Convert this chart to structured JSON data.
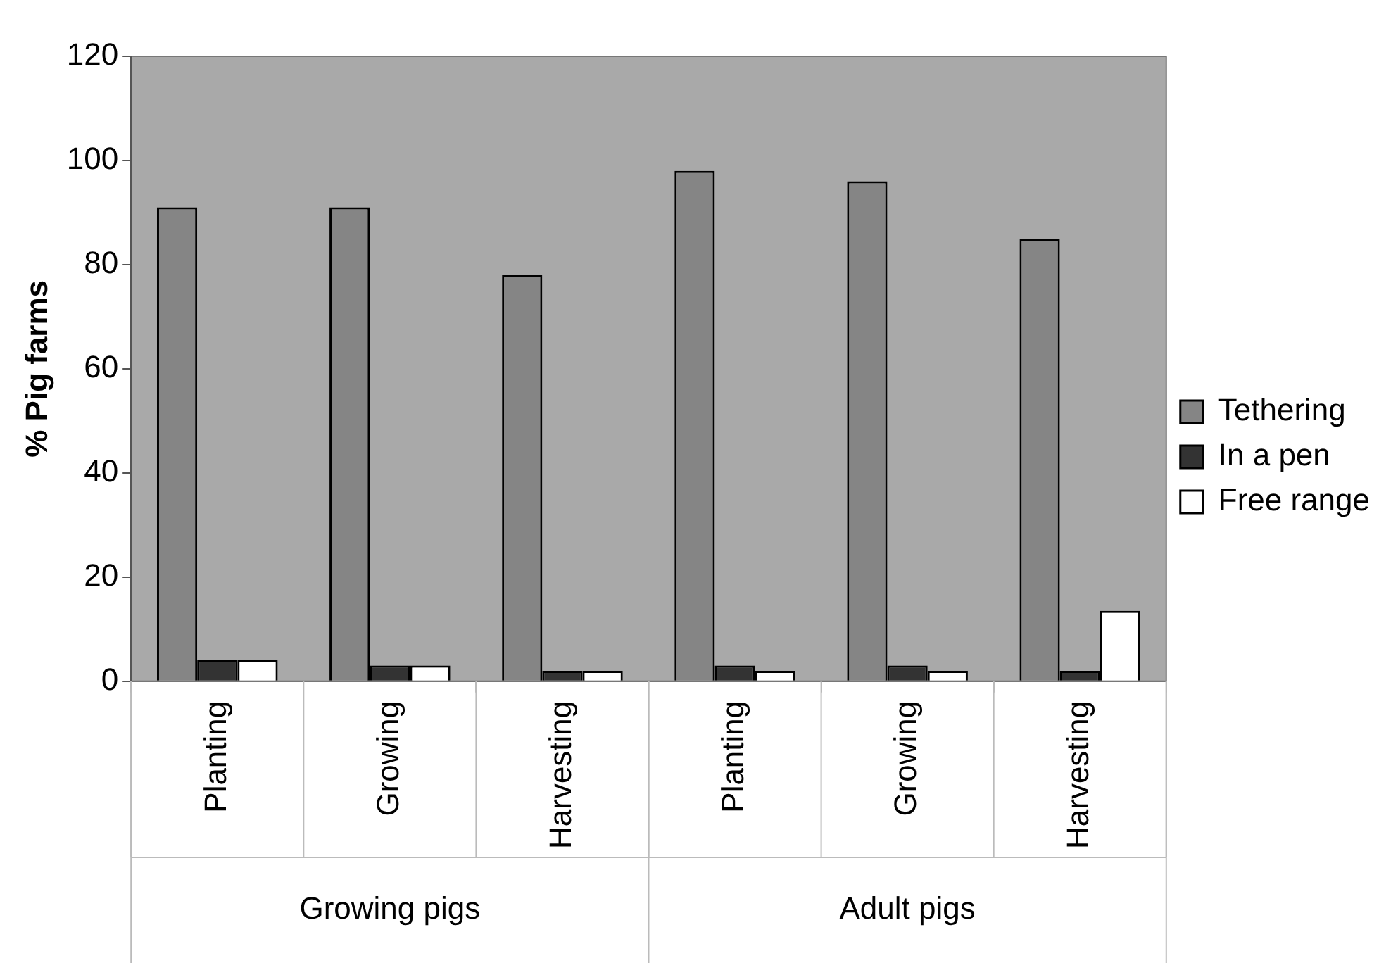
{
  "chart_data": {
    "type": "bar",
    "ylabel": "% Pig farms",
    "categories": [
      "Planting",
      "Growing",
      "Harvesting",
      "Planting",
      "Growing",
      "Harvesting"
    ],
    "series": [
      {
        "name": "Tethering",
        "color": "#858585",
        "values": [
          91,
          91,
          78,
          98,
          96,
          85
        ]
      },
      {
        "name": "In a pen",
        "color": "#333333",
        "values": [
          4,
          3,
          2,
          3,
          3,
          2
        ]
      },
      {
        "name": "Free range",
        "color": "#ffffff",
        "values": [
          4,
          3,
          2,
          2,
          2,
          13.5
        ]
      }
    ],
    "ylim": [
      0,
      120
    ],
    "yticks": [
      0,
      20,
      40,
      60,
      80,
      100,
      120
    ],
    "grid": false,
    "legend": "right",
    "annotations": [
      "Growing pigs",
      "Adult pigs"
    ]
  }
}
